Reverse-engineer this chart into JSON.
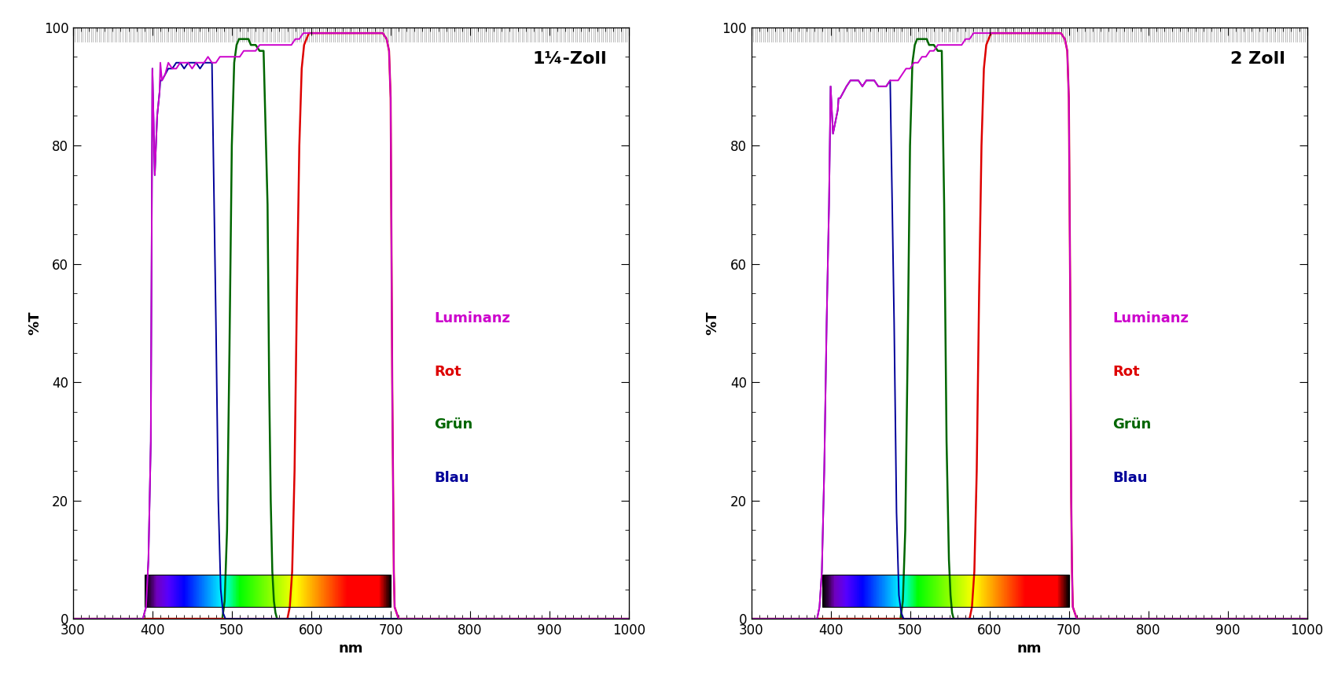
{
  "title_left": "1¼-Zoll",
  "title_right": "2 Zoll",
  "xlabel": "nm",
  "ylabel": "%T",
  "xlim": [
    300,
    1000
  ],
  "ylim": [
    0,
    100
  ],
  "xticks": [
    300,
    400,
    500,
    600,
    700,
    800,
    900,
    1000
  ],
  "yticks": [
    0,
    20,
    40,
    60,
    80,
    100
  ],
  "legend_entries": [
    "Luminanz",
    "Rot",
    "Grün",
    "Blau"
  ],
  "legend_colors": [
    "#cc00cc",
    "#dd0000",
    "#006600",
    "#000099"
  ],
  "background_color": "#ffffff",
  "filters": {
    "left": {
      "luminanz": {
        "color": "#cc00cc",
        "x": [
          300,
          388,
          392,
          395,
          398,
          400,
          403,
          406,
          409,
          412,
          416,
          420,
          425,
          430,
          435,
          440,
          445,
          450,
          455,
          460,
          465,
          470,
          475,
          480,
          485,
          490,
          495,
          500,
          505,
          510,
          515,
          520,
          525,
          530,
          535,
          540,
          545,
          550,
          555,
          560,
          565,
          570,
          575,
          580,
          585,
          590,
          595,
          600,
          605,
          610,
          615,
          620,
          625,
          630,
          635,
          640,
          645,
          650,
          655,
          660,
          665,
          670,
          675,
          680,
          685,
          690,
          695,
          698,
          700,
          702,
          704,
          705,
          710,
          1000
        ],
        "y": [
          0,
          0,
          2,
          10,
          30,
          55,
          75,
          85,
          89,
          91,
          92,
          93,
          93,
          94,
          94,
          94,
          94,
          94,
          94,
          93,
          94,
          94,
          94,
          95,
          95,
          95,
          95,
          95,
          95,
          96,
          96,
          96,
          96,
          96,
          97,
          97,
          97,
          97,
          97,
          97,
          97,
          97,
          97,
          98,
          98,
          99,
          99,
          99,
          99,
          99,
          99,
          99,
          99,
          99,
          99,
          99,
          99,
          99,
          99,
          99,
          99,
          99,
          99,
          99,
          99,
          99,
          98,
          96,
          88,
          40,
          8,
          2,
          0,
          0
        ]
      },
      "rot": {
        "color": "#dd0000",
        "x": [
          300,
          570,
          573,
          576,
          579,
          582,
          585,
          588,
          591,
          594,
          597,
          600,
          605,
          610,
          615,
          620,
          625,
          630,
          635,
          640,
          645,
          650,
          655,
          660,
          665,
          670,
          675,
          680,
          685,
          690,
          695,
          698,
          700,
          702,
          704,
          705,
          710,
          1000
        ],
        "y": [
          0,
          0,
          2,
          8,
          25,
          55,
          80,
          93,
          97,
          98,
          99,
          99,
          99,
          99,
          99,
          99,
          99,
          99,
          99,
          99,
          99,
          99,
          99,
          99,
          99,
          99,
          99,
          99,
          99,
          99,
          98,
          96,
          88,
          40,
          8,
          2,
          0,
          0
        ]
      },
      "gruen": {
        "color": "#006600",
        "x": [
          300,
          488,
          491,
          494,
          497,
          500,
          503,
          506,
          509,
          512,
          515,
          518,
          521,
          524,
          527,
          530,
          535,
          540,
          545,
          547,
          549,
          551,
          553,
          555,
          557,
          559,
          561,
          563,
          565,
          570,
          1000
        ],
        "y": [
          0,
          0,
          3,
          15,
          45,
          80,
          94,
          97,
          98,
          98,
          98,
          98,
          98,
          97,
          97,
          97,
          96,
          96,
          70,
          40,
          20,
          8,
          3,
          1,
          0,
          0,
          0,
          0,
          0,
          0,
          0
        ]
      },
      "blau": {
        "color": "#000099",
        "x": [
          300,
          388,
          392,
          395,
          398,
          400,
          403,
          406,
          409,
          412,
          416,
          420,
          425,
          430,
          435,
          440,
          445,
          450,
          455,
          460,
          465,
          470,
          475,
          480,
          483,
          486,
          489,
          492,
          495,
          500,
          1000
        ],
        "y": [
          0,
          0,
          2,
          10,
          30,
          55,
          75,
          85,
          89,
          91,
          92,
          93,
          93,
          94,
          94,
          94,
          94,
          94,
          94,
          93,
          94,
          94,
          94,
          50,
          20,
          5,
          1,
          0,
          0,
          0,
          0
        ]
      }
    },
    "right": {
      "luminanz": {
        "color": "#cc00cc",
        "x": [
          300,
          383,
          386,
          389,
          392,
          395,
          398,
          400,
          403,
          406,
          409,
          412,
          416,
          420,
          425,
          430,
          435,
          440,
          445,
          450,
          455,
          460,
          465,
          470,
          475,
          480,
          485,
          490,
          495,
          500,
          505,
          510,
          515,
          520,
          525,
          530,
          535,
          540,
          545,
          550,
          555,
          560,
          565,
          570,
          575,
          580,
          585,
          590,
          595,
          600,
          605,
          610,
          615,
          620,
          625,
          630,
          635,
          640,
          645,
          650,
          655,
          660,
          665,
          670,
          675,
          680,
          685,
          690,
          695,
          698,
          700,
          702,
          703,
          704,
          705,
          710,
          1000
        ],
        "y": [
          0,
          0,
          2,
          8,
          25,
          50,
          70,
          78,
          82,
          84,
          86,
          88,
          89,
          90,
          91,
          91,
          91,
          91,
          91,
          91,
          91,
          90,
          90,
          90,
          91,
          90,
          91,
          92,
          93,
          93,
          94,
          94,
          95,
          95,
          96,
          97,
          97,
          97,
          97,
          97,
          97,
          97,
          97,
          98,
          98,
          99,
          99,
          99,
          99,
          99,
          99,
          99,
          99,
          99,
          99,
          99,
          99,
          99,
          99,
          99,
          99,
          99,
          99,
          99,
          99,
          99,
          99,
          99,
          98,
          96,
          88,
          50,
          20,
          8,
          2,
          0,
          0
        ]
      },
      "rot": {
        "color": "#dd0000",
        "x": [
          300,
          575,
          578,
          581,
          584,
          587,
          590,
          593,
          596,
          599,
          602,
          605,
          610,
          615,
          620,
          625,
          630,
          635,
          640,
          645,
          650,
          655,
          660,
          665,
          670,
          675,
          680,
          685,
          690,
          695,
          698,
          700,
          702,
          703,
          704,
          705,
          710,
          1000
        ],
        "y": [
          0,
          0,
          2,
          8,
          25,
          55,
          80,
          93,
          97,
          98,
          99,
          99,
          99,
          99,
          99,
          99,
          99,
          99,
          99,
          99,
          99,
          99,
          99,
          99,
          99,
          99,
          99,
          99,
          99,
          98,
          96,
          88,
          50,
          20,
          8,
          2,
          0,
          0
        ]
      },
      "gruen": {
        "color": "#006600",
        "x": [
          300,
          488,
          491,
          494,
          497,
          500,
          503,
          506,
          509,
          512,
          515,
          518,
          521,
          524,
          527,
          530,
          535,
          540,
          543,
          546,
          549,
          551,
          553,
          555,
          557,
          559,
          561,
          563,
          565,
          570,
          1000
        ],
        "y": [
          0,
          0,
          3,
          15,
          45,
          80,
          94,
          97,
          98,
          98,
          98,
          98,
          98,
          97,
          97,
          97,
          96,
          96,
          70,
          30,
          10,
          4,
          1,
          0,
          0,
          0,
          0,
          0,
          0,
          0,
          0
        ]
      },
      "blau": {
        "color": "#000099",
        "x": [
          300,
          383,
          386,
          389,
          392,
          395,
          398,
          400,
          403,
          406,
          409,
          412,
          416,
          420,
          425,
          430,
          435,
          440,
          445,
          450,
          455,
          460,
          465,
          470,
          475,
          480,
          483,
          486,
          489,
          492,
          495,
          500,
          1000
        ],
        "y": [
          0,
          0,
          2,
          8,
          25,
          50,
          70,
          78,
          82,
          84,
          86,
          88,
          89,
          90,
          91,
          91,
          91,
          91,
          91,
          91,
          91,
          90,
          90,
          90,
          91,
          50,
          18,
          4,
          1,
          0,
          0,
          0,
          0
        ]
      }
    }
  },
  "spectrum_bar": {
    "x_start": 390,
    "x_end": 700,
    "y_bottom": 2.0,
    "height": 5.5
  },
  "noisy_regions": {
    "left": {
      "lum_noise_x": [
        400,
        410,
        420,
        430,
        440,
        450,
        460,
        470,
        480,
        490,
        500,
        510,
        520,
        530,
        540,
        550,
        560,
        570,
        580,
        590,
        600,
        610,
        620,
        630,
        640,
        650,
        660,
        670,
        680,
        690
      ],
      "lum_noise_y": [
        93,
        94,
        94,
        93,
        94,
        93,
        94,
        95,
        94,
        95,
        95,
        95,
        96,
        96,
        97,
        97,
        97,
        97,
        98,
        99,
        99,
        99,
        99,
        99,
        99,
        99,
        99,
        99,
        99,
        99
      ],
      "blau_noise_x": [
        400,
        410,
        420,
        430,
        440,
        450,
        460,
        470
      ],
      "blau_noise_y": [
        93,
        91,
        93,
        94,
        93,
        94,
        93,
        94
      ]
    },
    "right": {
      "lum_noise_x": [
        400,
        410,
        420,
        430,
        440,
        450,
        460,
        470,
        480,
        490,
        500,
        510,
        520,
        530,
        540,
        550,
        560,
        570,
        580,
        590,
        600,
        610,
        620,
        630,
        640,
        650,
        660,
        670,
        680,
        690
      ],
      "lum_noise_y": [
        90,
        88,
        90,
        91,
        90,
        91,
        90,
        90,
        91,
        92,
        93,
        94,
        95,
        96,
        97,
        97,
        97,
        98,
        99,
        99,
        99,
        99,
        99,
        99,
        99,
        99,
        99,
        99,
        99,
        99
      ],
      "blau_noise_x": [
        400,
        410,
        420,
        430,
        440,
        450,
        460,
        470
      ],
      "blau_noise_y": [
        90,
        88,
        90,
        91,
        90,
        91,
        90,
        90
      ]
    }
  }
}
